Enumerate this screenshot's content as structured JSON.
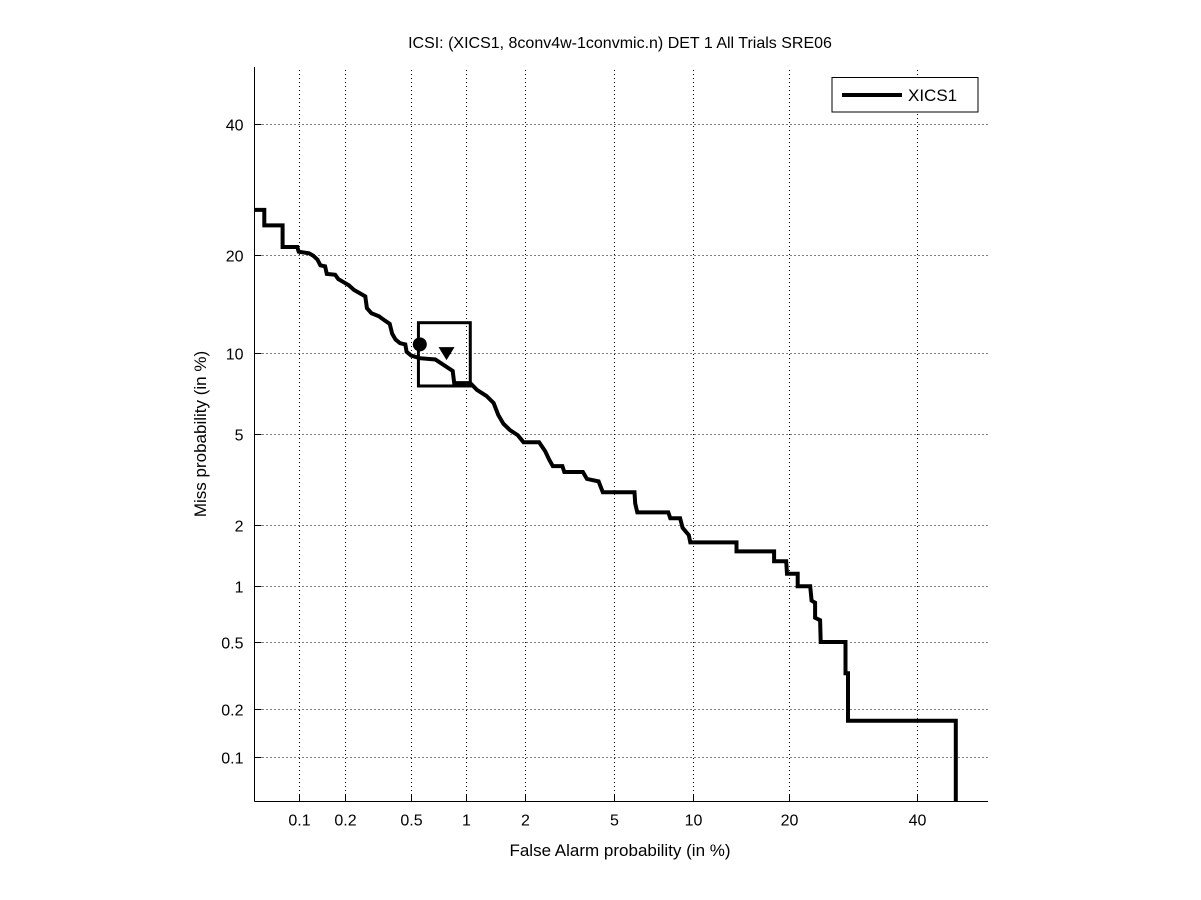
{
  "chart_data": {
    "type": "line",
    "scale": "normal-deviate (DET)",
    "title": "ICSI: (XICS1, 8conv4w-1convmic.n) DET 1 All Trials SRE06",
    "xlabel": "False Alarm probability (in %)",
    "ylabel": "Miss probability (in %)",
    "xlim": [
      0.049,
      53
    ],
    "ylim": [
      0.05,
      50
    ],
    "xticks": [
      0.1,
      0.2,
      0.5,
      1,
      2,
      5,
      10,
      20,
      40
    ],
    "xtick_labels": [
      "0.1",
      "0.2",
      "0.5",
      "1",
      "2",
      "5",
      "10",
      "20",
      "40"
    ],
    "yticks": [
      0.1,
      0.2,
      0.5,
      1,
      2,
      5,
      10,
      20,
      40
    ],
    "ytick_labels": [
      "0.1",
      "0.2",
      "0.5",
      "1",
      "2",
      "5",
      "10",
      "20",
      "40"
    ],
    "grid": true,
    "legend": {
      "position": "top-right",
      "entries": [
        "XICS1"
      ]
    },
    "series": [
      {
        "name": "XICS1",
        "color": "#000000",
        "points": [
          [
            0.049,
            26.1
          ],
          [
            0.0575,
            26.1
          ],
          [
            0.0575,
            23.9
          ],
          [
            0.077,
            23.9
          ],
          [
            0.077,
            21.0
          ],
          [
            0.097,
            21.0
          ],
          [
            0.099,
            20.4
          ],
          [
            0.116,
            20.2
          ],
          [
            0.124,
            19.9
          ],
          [
            0.132,
            19.4
          ],
          [
            0.138,
            18.7
          ],
          [
            0.148,
            18.6
          ],
          [
            0.152,
            17.7
          ],
          [
            0.172,
            17.6
          ],
          [
            0.18,
            17.1
          ],
          [
            0.193,
            16.8
          ],
          [
            0.21,
            16.4
          ],
          [
            0.226,
            15.9
          ],
          [
            0.266,
            15.2
          ],
          [
            0.272,
            14.0
          ],
          [
            0.29,
            13.5
          ],
          [
            0.322,
            13.2
          ],
          [
            0.35,
            12.8
          ],
          [
            0.374,
            12.5
          ],
          [
            0.387,
            11.6
          ],
          [
            0.405,
            11.1
          ],
          [
            0.43,
            10.8
          ],
          [
            0.462,
            10.7
          ],
          [
            0.47,
            10.1
          ],
          [
            0.5,
            9.8
          ],
          [
            0.559,
            9.6
          ],
          [
            0.685,
            9.5
          ],
          [
            0.854,
            8.67
          ],
          [
            0.87,
            7.84
          ],
          [
            1.06,
            7.84
          ],
          [
            1.15,
            7.4
          ],
          [
            1.29,
            7.02
          ],
          [
            1.4,
            6.61
          ],
          [
            1.48,
            5.95
          ],
          [
            1.57,
            5.5
          ],
          [
            1.69,
            5.19
          ],
          [
            1.85,
            4.95
          ],
          [
            1.97,
            4.64
          ],
          [
            2.34,
            4.64
          ],
          [
            2.5,
            4.26
          ],
          [
            2.6,
            3.95
          ],
          [
            2.71,
            3.69
          ],
          [
            3.0,
            3.69
          ],
          [
            3.06,
            3.48
          ],
          [
            3.7,
            3.48
          ],
          [
            3.85,
            3.25
          ],
          [
            4.32,
            3.17
          ],
          [
            4.5,
            2.84
          ],
          [
            6.06,
            2.84
          ],
          [
            6.1,
            2.53
          ],
          [
            6.22,
            2.3
          ],
          [
            8.16,
            2.3
          ],
          [
            8.3,
            2.16
          ],
          [
            9.01,
            2.16
          ],
          [
            9.2,
            1.95
          ],
          [
            9.68,
            1.8
          ],
          [
            9.8,
            1.66
          ],
          [
            13.99,
            1.66
          ],
          [
            13.99,
            1.5
          ],
          [
            18.2,
            1.5
          ],
          [
            18.2,
            1.34
          ],
          [
            19.7,
            1.34
          ],
          [
            19.8,
            1.16
          ],
          [
            21.2,
            1.16
          ],
          [
            21.2,
            1.0
          ],
          [
            22.9,
            1.0
          ],
          [
            23.1,
            0.84
          ],
          [
            23.6,
            0.82
          ],
          [
            23.6,
            0.68
          ],
          [
            24.3,
            0.66
          ],
          [
            24.4,
            0.5
          ],
          [
            28.1,
            0.5
          ],
          [
            28.1,
            0.33
          ],
          [
            28.5,
            0.33
          ],
          [
            28.5,
            0.17
          ],
          [
            47.1,
            0.17
          ],
          [
            47.1,
            0.05
          ]
        ]
      }
    ],
    "markers": [
      {
        "name": "actual-decision-point",
        "shape": "circle",
        "x": 0.56,
        "y": 10.7
      },
      {
        "name": "min-dcf-point",
        "shape": "triangle-down",
        "x": 0.79,
        "y": 10.0
      }
    ],
    "confidence_box": {
      "x_range": [
        0.55,
        1.06
      ],
      "y_range": [
        7.65,
        12.6
      ]
    }
  }
}
